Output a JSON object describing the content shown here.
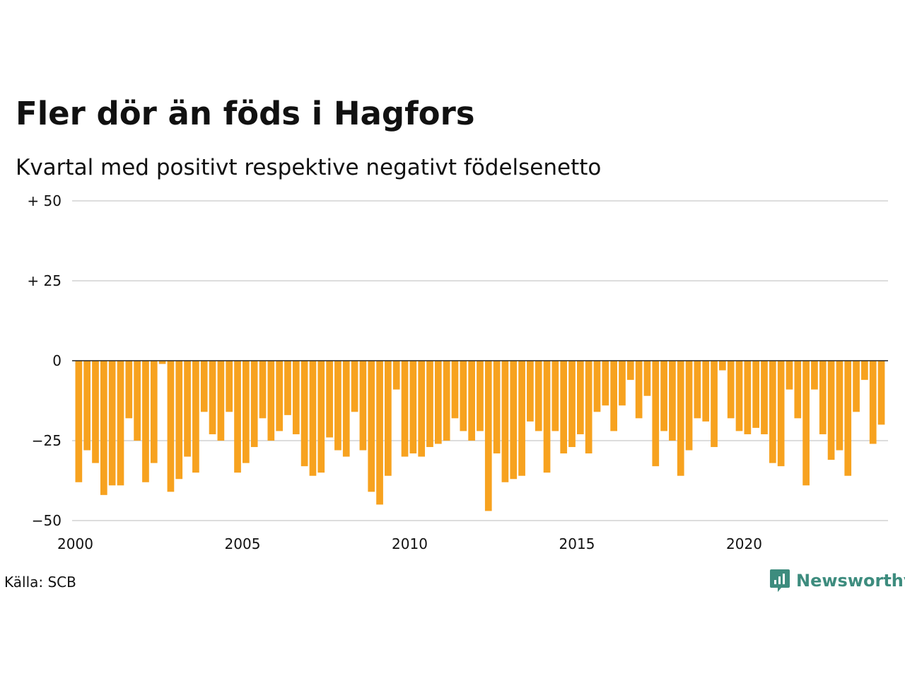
{
  "title": "Fler dör än föds i Hagfors",
  "subtitle": "Kvartal med positivt respektive negativt födelsenetto",
  "source": "Källa: SCB",
  "brand": {
    "name": "Newsworthy",
    "icon": "newsworthy-logo-icon",
    "color": "#3d8c7e"
  },
  "colors": {
    "bar": "#f7a21f",
    "grid": "#dddddd",
    "zero_line": "#222222"
  },
  "chart_data": {
    "type": "bar",
    "ylim": [
      -50,
      50
    ],
    "yticks": [
      {
        "value": 50,
        "label": "+ 50"
      },
      {
        "value": 25,
        "label": "+ 25"
      },
      {
        "value": 0,
        "label": "0"
      },
      {
        "value": -25,
        "label": "−25"
      },
      {
        "value": -50,
        "label": "−50"
      }
    ],
    "xlim": [
      2000.0,
      2024.5
    ],
    "xticks": [
      {
        "value": 2000,
        "label": "2000"
      },
      {
        "value": 2005,
        "label": "2005"
      },
      {
        "value": 2010,
        "label": "2010"
      },
      {
        "value": 2015,
        "label": "2015"
      },
      {
        "value": 2020,
        "label": "2020"
      }
    ],
    "start_year": 2000,
    "periods_per_year": 4,
    "values": [
      -38,
      -28,
      -32,
      -42,
      -39,
      -39,
      -18,
      -25,
      -38,
      -32,
      -1,
      -41,
      -37,
      -30,
      -35,
      -16,
      -23,
      -25,
      -16,
      -35,
      -32,
      -27,
      -18,
      -25,
      -22,
      -17,
      -23,
      -33,
      -36,
      -35,
      -24,
      -28,
      -30,
      -16,
      -28,
      -41,
      -45,
      -36,
      -9,
      -30,
      -29,
      -30,
      -27,
      -26,
      -25,
      -18,
      -22,
      -25,
      -22,
      -47,
      -29,
      -38,
      -37,
      -36,
      -19,
      -22,
      -35,
      -22,
      -29,
      -27,
      -23,
      -29,
      -16,
      -14,
      -22,
      -14,
      -6,
      -18,
      -11,
      -33,
      -22,
      -25,
      -36,
      -28,
      -18,
      -19,
      -27,
      -3,
      -18,
      -22,
      -23,
      -21,
      -23,
      -32,
      -33,
      -9,
      -18,
      -39,
      -9,
      -23,
      -31,
      -28,
      -36,
      -16,
      -6,
      -26,
      -20
    ]
  }
}
